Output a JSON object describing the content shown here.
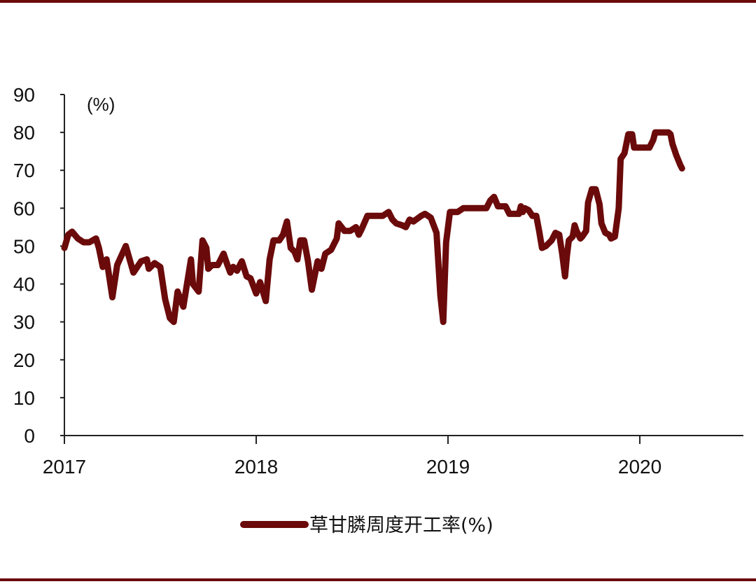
{
  "colors": {
    "series": "#6b0a0a",
    "rule": "#6b0a0a",
    "axis": "#222222",
    "background": "#ffffff"
  },
  "chart_data": {
    "type": "line",
    "unit_label": "(%)",
    "ylim": [
      0,
      90
    ],
    "y_ticks": [
      0,
      10,
      20,
      30,
      40,
      50,
      60,
      70,
      80,
      90
    ],
    "xlim": [
      2017.0,
      2020.54
    ],
    "x_ticks": [
      {
        "value": 2017,
        "label": "2017"
      },
      {
        "value": 2018,
        "label": "2018"
      },
      {
        "value": 2019,
        "label": "2019"
      },
      {
        "value": 2020,
        "label": "2020"
      }
    ],
    "grid": false,
    "legend_position": "bottom",
    "series": [
      {
        "name": "草甘膦周度开工率(%)",
        "points": [
          [
            2017.0,
            49.5
          ],
          [
            2017.02,
            53.0
          ],
          [
            2017.04,
            53.8
          ],
          [
            2017.07,
            52.0
          ],
          [
            2017.1,
            51.0
          ],
          [
            2017.13,
            51.0
          ],
          [
            2017.165,
            52.0
          ],
          [
            2017.18,
            49.5
          ],
          [
            2017.2,
            44.5
          ],
          [
            2017.22,
            46.5
          ],
          [
            2017.25,
            36.5
          ],
          [
            2017.275,
            45.0
          ],
          [
            2017.32,
            50.0
          ],
          [
            2017.36,
            43.0
          ],
          [
            2017.4,
            46.0
          ],
          [
            2017.43,
            46.5
          ],
          [
            2017.44,
            44.0
          ],
          [
            2017.47,
            45.5
          ],
          [
            2017.5,
            44.5
          ],
          [
            2017.525,
            36.0
          ],
          [
            2017.55,
            31.0
          ],
          [
            2017.57,
            30.0
          ],
          [
            2017.59,
            38.0
          ],
          [
            2017.62,
            34.0
          ],
          [
            2017.66,
            46.5
          ],
          [
            2017.67,
            40.0
          ],
          [
            2017.7,
            38.0
          ],
          [
            2017.72,
            51.5
          ],
          [
            2017.74,
            49.5
          ],
          [
            2017.75,
            44.0
          ],
          [
            2017.77,
            45.0
          ],
          [
            2017.8,
            45.0
          ],
          [
            2017.83,
            48.0
          ],
          [
            2017.85,
            45.0
          ],
          [
            2017.865,
            43.0
          ],
          [
            2017.88,
            44.5
          ],
          [
            2017.9,
            43.5
          ],
          [
            2017.925,
            46.0
          ],
          [
            2017.95,
            42.0
          ],
          [
            2017.97,
            41.5
          ],
          [
            2018.0,
            37.5
          ],
          [
            2018.02,
            40.5
          ],
          [
            2018.05,
            35.5
          ],
          [
            2018.07,
            46.5
          ],
          [
            2018.09,
            51.5
          ],
          [
            2018.12,
            51.5
          ],
          [
            2018.14,
            53.0
          ],
          [
            2018.16,
            56.5
          ],
          [
            2018.18,
            49.5
          ],
          [
            2018.2,
            48.5
          ],
          [
            2018.215,
            46.5
          ],
          [
            2018.23,
            51.5
          ],
          [
            2018.25,
            51.5
          ],
          [
            2018.27,
            46.0
          ],
          [
            2018.29,
            38.5
          ],
          [
            2018.32,
            46.0
          ],
          [
            2018.34,
            44.0
          ],
          [
            2018.36,
            48.0
          ],
          [
            2018.39,
            49.0
          ],
          [
            2018.42,
            52.0
          ],
          [
            2018.43,
            56.0
          ],
          [
            2018.46,
            54.0
          ],
          [
            2018.49,
            54.0
          ],
          [
            2018.52,
            55.0
          ],
          [
            2018.535,
            53.0
          ],
          [
            2018.55,
            54.5
          ],
          [
            2018.58,
            58.0
          ],
          [
            2018.62,
            58.0
          ],
          [
            2018.66,
            58.0
          ],
          [
            2018.69,
            59.0
          ],
          [
            2018.71,
            57.0
          ],
          [
            2018.73,
            56.0
          ],
          [
            2018.76,
            55.5
          ],
          [
            2018.78,
            55.0
          ],
          [
            2018.8,
            57.0
          ],
          [
            2018.82,
            56.5
          ],
          [
            2018.86,
            58.0
          ],
          [
            2018.88,
            58.5
          ],
          [
            2018.91,
            57.5
          ],
          [
            2018.94,
            53.5
          ],
          [
            2018.96,
            37.0
          ],
          [
            2018.975,
            30.0
          ],
          [
            2018.99,
            51.0
          ],
          [
            2019.01,
            59.0
          ],
          [
            2019.05,
            59.0
          ],
          [
            2019.08,
            60.0
          ],
          [
            2019.12,
            60.0
          ],
          [
            2019.16,
            60.0
          ],
          [
            2019.2,
            60.0
          ],
          [
            2019.22,
            62.0
          ],
          [
            2019.24,
            63.0
          ],
          [
            2019.26,
            60.5
          ],
          [
            2019.28,
            60.5
          ],
          [
            2019.3,
            60.5
          ],
          [
            2019.32,
            58.5
          ],
          [
            2019.35,
            58.5
          ],
          [
            2019.37,
            58.5
          ],
          [
            2019.38,
            60.5
          ],
          [
            2019.39,
            59.0
          ],
          [
            2019.4,
            60.0
          ],
          [
            2019.42,
            59.5
          ],
          [
            2019.44,
            58.0
          ],
          [
            2019.46,
            58.0
          ],
          [
            2019.475,
            54.0
          ],
          [
            2019.49,
            49.5
          ],
          [
            2019.51,
            50.0
          ],
          [
            2019.54,
            51.5
          ],
          [
            2019.56,
            53.5
          ],
          [
            2019.58,
            53.0
          ],
          [
            2019.595,
            48.0
          ],
          [
            2019.61,
            42.0
          ],
          [
            2019.62,
            47.5
          ],
          [
            2019.63,
            51.5
          ],
          [
            2019.65,
            52.5
          ],
          [
            2019.66,
            55.5
          ],
          [
            2019.67,
            54.0
          ],
          [
            2019.69,
            52.0
          ],
          [
            2019.7,
            52.5
          ],
          [
            2019.72,
            54.0
          ],
          [
            2019.73,
            61.5
          ],
          [
            2019.75,
            65.0
          ],
          [
            2019.77,
            65.0
          ],
          [
            2019.79,
            61.0
          ],
          [
            2019.8,
            56.0
          ],
          [
            2019.82,
            53.5
          ],
          [
            2019.84,
            53.0
          ],
          [
            2019.85,
            52.0
          ],
          [
            2019.87,
            52.5
          ],
          [
            2019.89,
            60.0
          ],
          [
            2019.9,
            73.0
          ],
          [
            2019.92,
            74.5
          ],
          [
            2019.94,
            79.5
          ],
          [
            2019.96,
            79.5
          ],
          [
            2019.97,
            76.0
          ],
          [
            2019.99,
            76.0
          ],
          [
            2020.02,
            76.0
          ],
          [
            2020.05,
            76.0
          ],
          [
            2020.07,
            78.0
          ],
          [
            2020.08,
            80.0
          ],
          [
            2020.1,
            80.0
          ],
          [
            2020.13,
            80.0
          ],
          [
            2020.15,
            80.0
          ],
          [
            2020.16,
            79.5
          ],
          [
            2020.17,
            77.0
          ],
          [
            2020.19,
            74.0
          ],
          [
            2020.21,
            71.5
          ],
          [
            2020.22,
            70.5
          ]
        ]
      }
    ]
  }
}
